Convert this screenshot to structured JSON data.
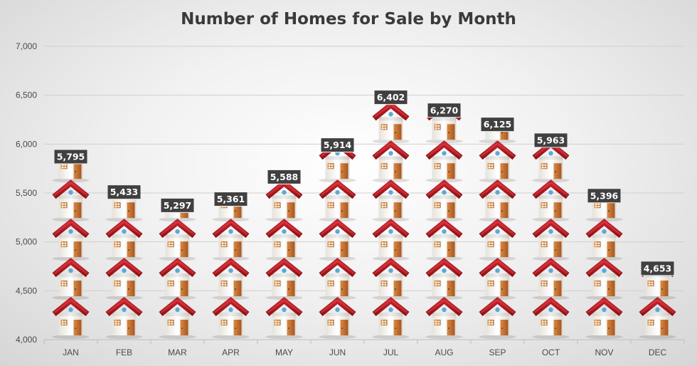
{
  "chart_data": {
    "type": "bar",
    "title": "Number of Homes for Sale by Month",
    "categories": [
      "JAN",
      "FEB",
      "MAR",
      "APR",
      "MAY",
      "JUN",
      "JUL",
      "AUG",
      "SEP",
      "OCT",
      "NOV",
      "DEC"
    ],
    "values": [
      5795,
      5433,
      5297,
      5361,
      5588,
      5914,
      6402,
      6270,
      6125,
      5963,
      5396,
      4653
    ],
    "value_labels": [
      "5,795",
      "5,433",
      "5,297",
      "5,361",
      "5,588",
      "5,914",
      "6,402",
      "6,270",
      "6,125",
      "5,963",
      "5,396",
      "4,653"
    ],
    "ylim": [
      4000,
      7000
    ],
    "yticks": [
      4000,
      4500,
      5000,
      5500,
      6000,
      6500,
      7000
    ],
    "ytick_labels": [
      "4,000",
      "4,500",
      "5,000",
      "5,500",
      "6,000",
      "6,500",
      "7,000"
    ],
    "unit_per_icon": 400,
    "grid": true,
    "mark_style": "stacked house icons",
    "colors": {
      "roof": "#b0181e",
      "wall": "#f4f1ec",
      "door": "#c06a2b",
      "window": "#c8843f",
      "dot": "#5fa8d3",
      "label_bg": "#404040",
      "gridline": "#cfcfcf"
    }
  }
}
